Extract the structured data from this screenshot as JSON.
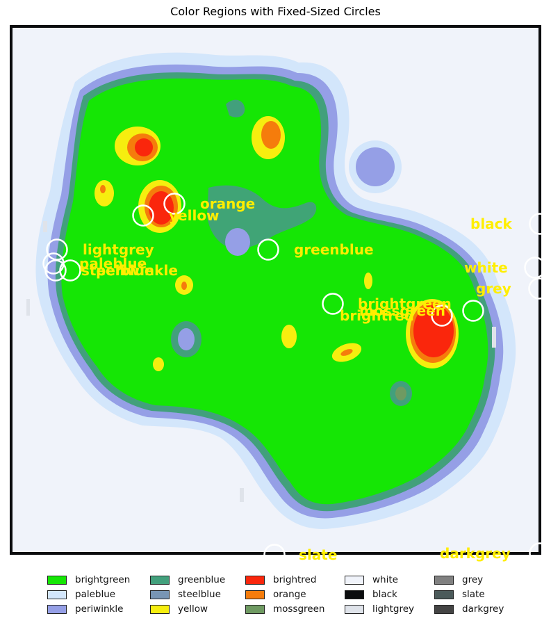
{
  "title": "Color Regions with Fixed-Sized Circles",
  "colors": {
    "brightgreen": "#15e605",
    "paleblue": "#d3e6fb",
    "periwinkle": "#959fe6",
    "greenblue": "#42a07c",
    "steelblue": "#7895b4",
    "yellow": "#f6ee0f",
    "brightred": "#fa260c",
    "orange": "#f57c0c",
    "mossgreen": "#6f9a62",
    "white": "#f0f3fa",
    "black": "#0b0c0e",
    "lightgrey": "#dfe3ea",
    "grey": "#808080",
    "slate": "#4b5a5a",
    "darkgrey": "#444444",
    "label": "#ffee00"
  },
  "circle_labels": [
    {
      "id": "orange",
      "text": "orange"
    },
    {
      "id": "yellow",
      "text": "yellow"
    },
    {
      "id": "lightgrey",
      "text": "lightgrey"
    },
    {
      "id": "paleblue",
      "text": "paleblue"
    },
    {
      "id": "steelblue",
      "text": "steelblue"
    },
    {
      "id": "periwinkle",
      "text": "periwinkle"
    },
    {
      "id": "greenblue",
      "text": "greenblue"
    },
    {
      "id": "black",
      "text": "black"
    },
    {
      "id": "white",
      "text": "white"
    },
    {
      "id": "grey",
      "text": "grey"
    },
    {
      "id": "brightgreen",
      "text": "brightgreen"
    },
    {
      "id": "mossgreen",
      "text": "mossgreen"
    },
    {
      "id": "brightred",
      "text": "brightred"
    },
    {
      "id": "slate",
      "text": "slate"
    },
    {
      "id": "darkgrey",
      "text": "darkgrey"
    }
  ],
  "legend": [
    {
      "label": "brightgreen",
      "color": "#15e605"
    },
    {
      "label": "greenblue",
      "color": "#42a07c"
    },
    {
      "label": "brightred",
      "color": "#fa260c"
    },
    {
      "label": "white",
      "color": "#f0f3fa"
    },
    {
      "label": "grey",
      "color": "#808080"
    },
    {
      "label": "paleblue",
      "color": "#d3e6fb"
    },
    {
      "label": "steelblue",
      "color": "#7895b4"
    },
    {
      "label": "orange",
      "color": "#f57c0c"
    },
    {
      "label": "black",
      "color": "#0b0c0e"
    },
    {
      "label": "slate",
      "color": "#4b5a5a"
    },
    {
      "label": "periwinkle",
      "color": "#959fe6"
    },
    {
      "label": "yellow",
      "color": "#f6ee0f"
    },
    {
      "label": "mossgreen",
      "color": "#6f9a62"
    },
    {
      "label": "lightgrey",
      "color": "#dfe3ea"
    },
    {
      "label": "darkgrey",
      "color": "#444444"
    }
  ]
}
